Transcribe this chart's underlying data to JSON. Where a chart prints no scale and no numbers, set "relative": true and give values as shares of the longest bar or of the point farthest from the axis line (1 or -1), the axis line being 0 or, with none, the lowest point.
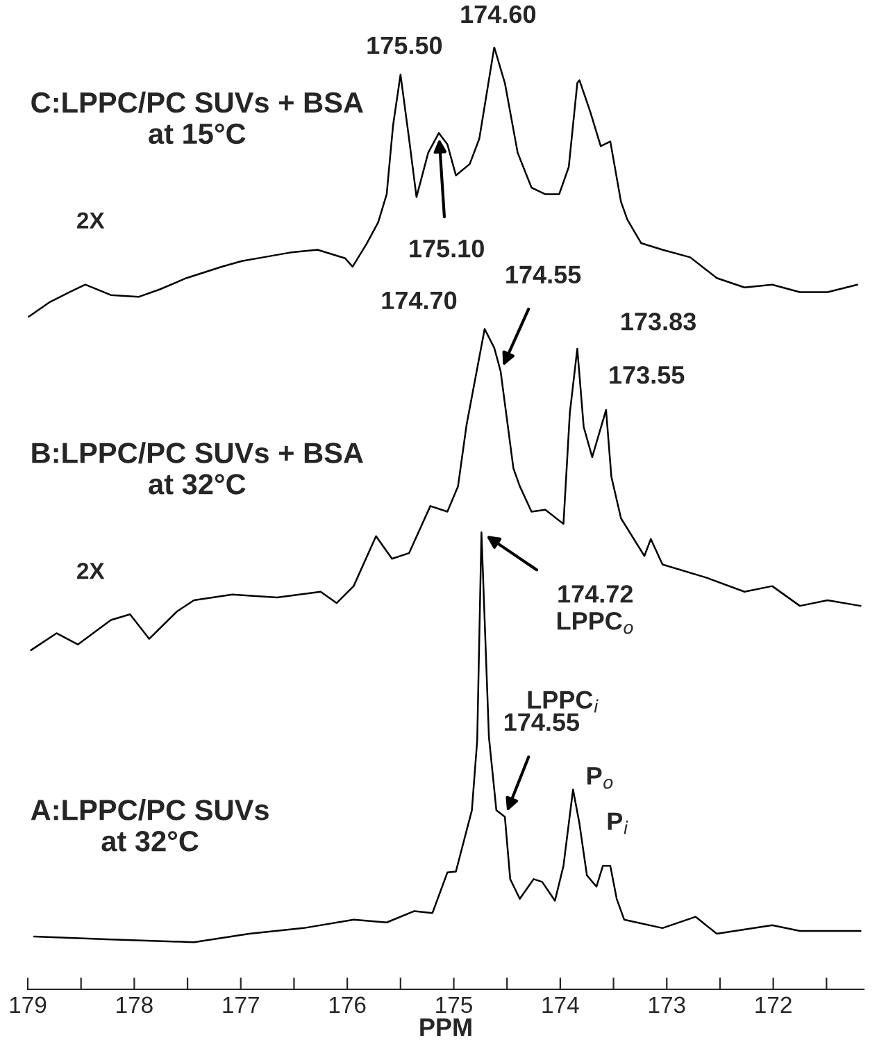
{
  "chart_data": {
    "type": "line",
    "relative": true,
    "xlabel": "PPM",
    "xlim": [
      179,
      171.15
    ],
    "xticks": [
      179,
      {
        "value": 178.5,
        "label": null
      },
      178,
      {
        "value": 177.5,
        "label": null
      },
      177,
      {
        "value": 176.5,
        "label": null
      },
      176,
      {
        "value": 175.5,
        "label": null
      },
      175,
      {
        "value": 174.5,
        "label": null
      },
      174,
      {
        "value": 173.5,
        "label": null
      },
      173,
      {
        "value": 172.5,
        "label": null
      },
      172,
      {
        "value": 171.5,
        "label": null
      }
    ],
    "grid": false,
    "legend": false,
    "marker": "none",
    "line_style": "solid",
    "series": [
      {
        "color": "#000000",
        "x": [
          178.99,
          178.8,
          178.61,
          178.46,
          178.22,
          177.96,
          177.76,
          177.51,
          177.18,
          176.99,
          176.79,
          176.54,
          176.28,
          176.02,
          175.95,
          175.82,
          175.71,
          175.63,
          175.57,
          175.5,
          175.42,
          175.35,
          175.24,
          175.14,
          175.06,
          174.98,
          174.85,
          174.76,
          174.62,
          174.52,
          174.4,
          174.27,
          174.14,
          174.01,
          173.92,
          173.84,
          173.82,
          173.72,
          173.62,
          173.53,
          173.43,
          173.37,
          173.24,
          173.04,
          172.78,
          172.53,
          172.27,
          172.01,
          171.75,
          171.49,
          171.21
        ],
        "values": [
          0.714,
          0.729,
          0.74,
          0.748,
          0.737,
          0.735,
          0.743,
          0.755,
          0.767,
          0.773,
          0.777,
          0.782,
          0.785,
          0.776,
          0.767,
          0.791,
          0.814,
          0.844,
          0.917,
          0.971,
          0.903,
          0.841,
          0.888,
          0.909,
          0.897,
          0.864,
          0.876,
          0.903,
          1.0,
          0.962,
          0.888,
          0.851,
          0.844,
          0.844,
          0.873,
          0.962,
          0.965,
          0.932,
          0.895,
          0.9,
          0.836,
          0.817,
          0.792,
          0.785,
          0.777,
          0.755,
          0.745,
          0.748,
          0.74,
          0.74,
          0.748
        ]
      },
      {
        "color": "#000000",
        "x": [
          178.97,
          178.73,
          178.53,
          178.22,
          178.04,
          177.86,
          177.6,
          177.44,
          177.08,
          176.66,
          176.25,
          176.1,
          175.94,
          175.73,
          175.58,
          175.42,
          175.22,
          175.06,
          174.96,
          174.88,
          174.71,
          174.62,
          174.56,
          174.44,
          174.38,
          174.27,
          174.14,
          173.97,
          173.91,
          173.84,
          173.78,
          173.7,
          173.57,
          173.52,
          173.43,
          173.21,
          173.15,
          173.04,
          172.63,
          172.27,
          172.01,
          171.75,
          171.49,
          171.18
        ],
        "values": [
          0.36,
          0.378,
          0.366,
          0.392,
          0.398,
          0.372,
          0.401,
          0.413,
          0.419,
          0.416,
          0.422,
          0.41,
          0.428,
          0.481,
          0.457,
          0.463,
          0.513,
          0.507,
          0.534,
          0.599,
          0.701,
          0.681,
          0.656,
          0.553,
          0.534,
          0.507,
          0.509,
          0.494,
          0.612,
          0.68,
          0.597,
          0.565,
          0.615,
          0.544,
          0.5,
          0.46,
          0.478,
          0.451,
          0.437,
          0.422,
          0.428,
          0.407,
          0.413,
          0.407
        ]
      },
      {
        "color": "#000000",
        "x": [
          178.94,
          178.22,
          177.44,
          176.92,
          176.41,
          175.94,
          175.63,
          175.37,
          175.2,
          175.06,
          174.98,
          174.83,
          174.78,
          174.74,
          174.67,
          174.6,
          174.52,
          174.47,
          174.38,
          174.25,
          174.17,
          174.05,
          173.97,
          173.88,
          173.82,
          173.75,
          173.66,
          173.6,
          173.53,
          173.47,
          173.4,
          173.04,
          172.73,
          172.53,
          172.01,
          171.75,
          171.18
        ],
        "values": [
          0.056,
          0.053,
          0.05,
          0.059,
          0.065,
          0.074,
          0.071,
          0.083,
          0.081,
          0.124,
          0.125,
          0.19,
          0.264,
          0.485,
          0.268,
          0.19,
          0.183,
          0.117,
          0.096,
          0.117,
          0.114,
          0.094,
          0.131,
          0.212,
          0.176,
          0.121,
          0.109,
          0.131,
          0.131,
          0.096,
          0.074,
          0.065,
          0.077,
          0.059,
          0.068,
          0.062,
          0.062
        ]
      }
    ],
    "annotations": [
      {
        "text": "175.50",
        "x": 175.5,
        "y": 0.971
      },
      {
        "text": "174.60",
        "x": 174.62,
        "y": 1.0
      },
      {
        "text": "175.10",
        "x": 175.14,
        "y": 0.909
      },
      "174.70",
      {
        "text": "174.55",
        "x": 174.56,
        "y": 0.656
      },
      {
        "text": "173.83",
        "x": 173.84,
        "y": 0.68
      },
      {
        "text": "173.55",
        "x": 173.57,
        "y": 0.615
      },
      {
        "text": "174.72\nLPPC$_{o}$",
        "x": 174.74,
        "y": 0.485
      },
      "LPPC$_{i}$",
      {
        "text": "174.55",
        "x": 174.52,
        "y": 0.183
      },
      {
        "text": "P$_{o}$",
        "x": 173.88,
        "y": 0.212
      },
      {
        "text": "P$_{i}$",
        "x": 173.57,
        "y": 0.131
      },
      "2X",
      "2X",
      "C:LPPC/PC SUVs + BSA\nat 15°C",
      "B:LPPC/PC SUVs + BSA\nat 32°C",
      "A:LPPC/PC SUVs\nat 32°C"
    ]
  }
}
